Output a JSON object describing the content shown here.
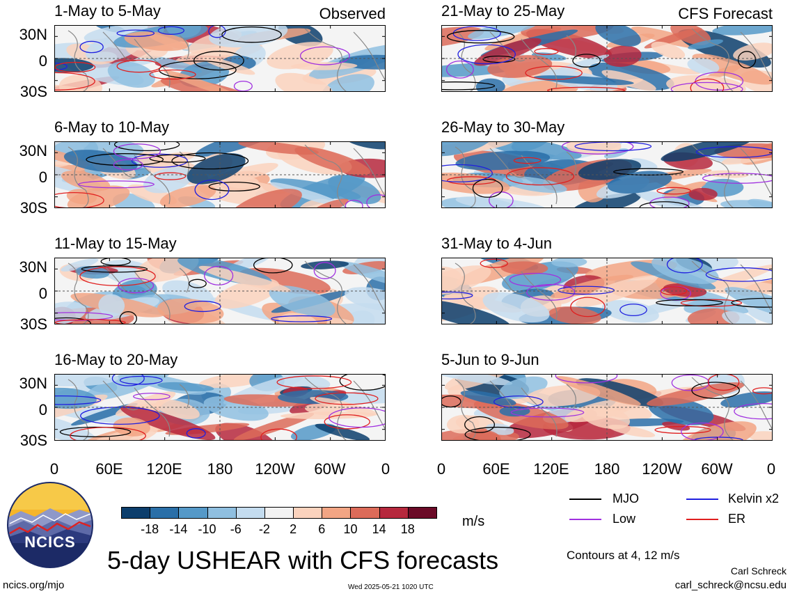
{
  "columns": {
    "left_label": "Observed",
    "right_label": "CFS Forecast"
  },
  "panels": [
    {
      "title": "1-May to 5-May",
      "col": 0,
      "row": 0
    },
    {
      "title": "6-May to 10-May",
      "col": 0,
      "row": 1
    },
    {
      "title": "11-May to 15-May",
      "col": 0,
      "row": 2
    },
    {
      "title": "16-May to 20-May",
      "col": 0,
      "row": 3
    },
    {
      "title": "21-May to 25-May",
      "col": 1,
      "row": 0
    },
    {
      "title": "26-May to 30-May",
      "col": 1,
      "row": 1
    },
    {
      "title": "31-May to 4-Jun",
      "col": 1,
      "row": 2
    },
    {
      "title": "5-Jun to 9-Jun",
      "col": 1,
      "row": 3
    }
  ],
  "lat_labels": [
    "30N",
    "0",
    "30S"
  ],
  "lon_labels": [
    "0",
    "60E",
    "120E",
    "180",
    "120W",
    "60W",
    "0"
  ],
  "colorbar": {
    "colors": [
      "#0c3e6c",
      "#2a6fa8",
      "#5599c8",
      "#8fbfe0",
      "#c4dcef",
      "#f2f2f2",
      "#fad2bd",
      "#f2a584",
      "#dc6b59",
      "#b6283d",
      "#6b0a27"
    ],
    "labels": [
      "-18",
      "-14",
      "-10",
      "-6",
      "-2",
      "2",
      "6",
      "10",
      "14",
      "18"
    ],
    "units": "m/s"
  },
  "legend": {
    "items": [
      {
        "label": "MJO",
        "color": "#000000"
      },
      {
        "label": "Kelvin x2",
        "color": "#1f1fdf"
      },
      {
        "label": "Low",
        "color": "#a030e0"
      },
      {
        "label": "ER",
        "color": "#e01f1f"
      }
    ],
    "contours_note": "Contours at 4, 12 m/s"
  },
  "logo": {
    "text": "NCICS"
  },
  "main_title": "5-day USHEAR with CFS forecasts",
  "footer": {
    "left_url": "ncics.org/mjo",
    "timestamp": "Wed 2025-05-21 1020 UTC",
    "author": "Carl Schreck",
    "email": "carl_schreck@ncsu.edu"
  }
}
